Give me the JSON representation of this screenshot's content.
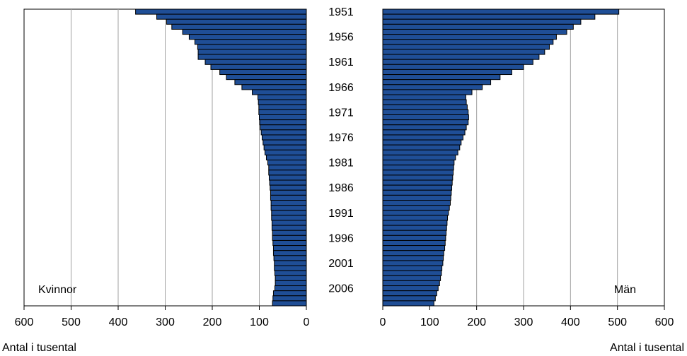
{
  "chart_data": {
    "type": "bar",
    "orientation": "horizontal",
    "colors": {
      "bar": "#1F4E96",
      "bar_outline": "#000000",
      "grid": "#A0A0A0",
      "axis": "#000000"
    },
    "grid": true,
    "y_categories": [
      1951,
      1952,
      1953,
      1954,
      1955,
      1956,
      1957,
      1958,
      1959,
      1960,
      1961,
      1962,
      1963,
      1964,
      1965,
      1966,
      1967,
      1968,
      1969,
      1970,
      1971,
      1972,
      1973,
      1974,
      1975,
      1976,
      1977,
      1978,
      1979,
      1980,
      1981,
      1982,
      1983,
      1984,
      1985,
      1986,
      1987,
      1988,
      1989,
      1990,
      1991,
      1992,
      1993,
      1994,
      1995,
      1996,
      1997,
      1998,
      1999,
      2000,
      2001,
      2002,
      2003,
      2004,
      2005,
      2006,
      2007,
      2008,
      2009
    ],
    "year_tick_labels": [
      "1951",
      "1956",
      "1961",
      "1966",
      "1971",
      "1976",
      "1981",
      "1986",
      "1991",
      "1996",
      "2001",
      "2006"
    ],
    "x_tick_labels": [
      "0",
      "100",
      "200",
      "300",
      "400",
      "500",
      "600"
    ],
    "xlim": [
      0,
      600
    ],
    "xlabel": "Antal i tusental",
    "panels": [
      {
        "name": "Kvinnor",
        "direction": "left",
        "values": [
          363,
          318,
          297,
          286,
          263,
          249,
          237,
          231,
          230,
          230,
          215,
          203,
          184,
          170,
          152,
          137,
          115,
          103,
          102,
          101,
          101,
          100,
          99,
          98,
          96,
          94,
          92,
          90,
          88,
          85,
          82,
          80,
          80,
          79,
          78,
          77,
          76,
          76,
          75,
          75,
          74,
          74,
          73,
          73,
          72,
          72,
          71,
          70,
          70,
          69,
          68,
          68,
          67,
          66,
          66,
          67,
          70,
          71,
          72
        ]
      },
      {
        "name": "Män",
        "direction": "right",
        "values": [
          503,
          452,
          422,
          406,
          392,
          370,
          363,
          355,
          345,
          333,
          320,
          300,
          275,
          250,
          230,
          212,
          190,
          177,
          178,
          180,
          182,
          183,
          182,
          178,
          175,
          171,
          167,
          164,
          160,
          155,
          152,
          151,
          150,
          149,
          148,
          147,
          146,
          145,
          144,
          142,
          140,
          138,
          137,
          136,
          135,
          134,
          133,
          132,
          130,
          129,
          128,
          126,
          125,
          123,
          121,
          118,
          115,
          112,
          109
        ]
      }
    ]
  }
}
